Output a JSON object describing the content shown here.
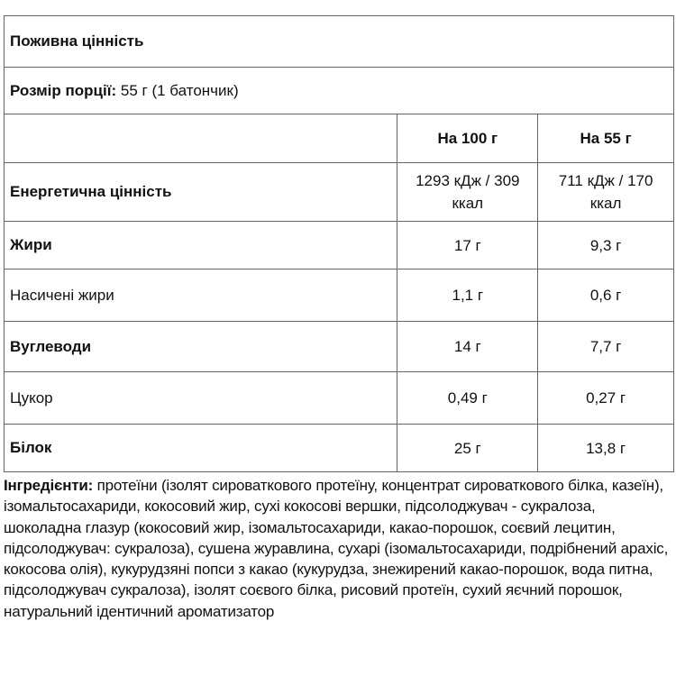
{
  "title": "Поживна цінність",
  "serving": {
    "label": "Розмір порції:",
    "value": " 55 г (1 батончик)"
  },
  "columns": [
    "На 100 г",
    "На 55 г"
  ],
  "rows": [
    {
      "name": "Енергетична цінність",
      "bold": true,
      "per100": "1293 кДж / 309 ккал",
      "per55": "711 кДж / 170 ккал"
    },
    {
      "name": "Жири",
      "bold": true,
      "per100": "17 г",
      "per55": "9,3 г"
    },
    {
      "name": "Насичені жири",
      "bold": false,
      "per100": "1,1 г",
      "per55": "0,6 г"
    },
    {
      "name": "Вуглеводи",
      "bold": true,
      "per100": "14 г",
      "per55": "7,7 г"
    },
    {
      "name": "Цукор",
      "bold": false,
      "per100": "0,49 г",
      "per55": "0,27 г"
    },
    {
      "name": "Білок",
      "bold": true,
      "per100": "25 г",
      "per55": "13,8 г"
    }
  ],
  "ingredients": {
    "label": "Інгредієнти:",
    "text": " протеїни (ізолят сироваткового протеїну, концентрат сироваткового білка, казеїн), ізомальтосахариди, кокосовий жир, сухі кокосові вершки, підсолоджувач - сукралоза, шоколадна глазур (кокосовий жир, ізомальтосахариди, какао-порошок, соєвий лецитин, підсолоджувач: сукралоза), сушена журавлина, сухарі (ізомальтосахариди, подрібнений арахіс, кокосова олія), кукурудзяні попси з какао (кукурудза, знежирений какао-порошок, вода питна, підсолоджувач сукралоза), ізолят соєвого білка, рисовий протеїн, сухий яєчний порошок, натуральний ідентичний ароматизатор"
  }
}
